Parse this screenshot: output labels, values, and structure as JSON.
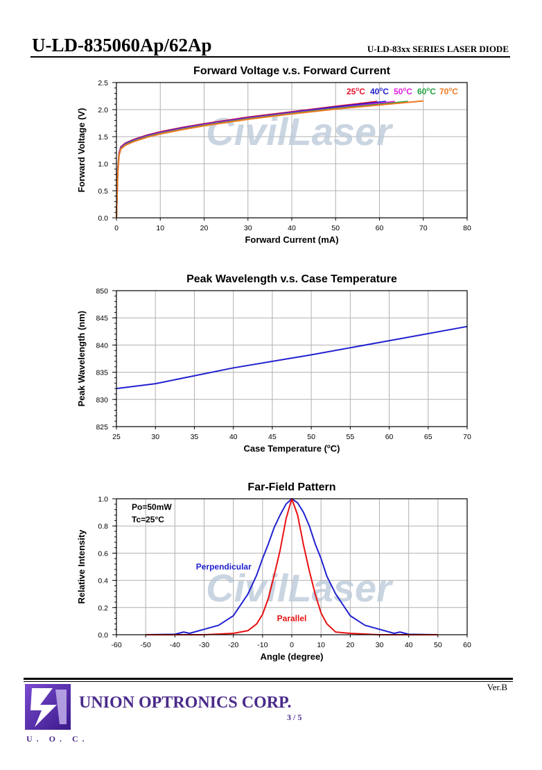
{
  "header": {
    "model": "U-LD-835060Ap/62Ap",
    "series": "U-LD-83xx SERIES LASER DIODE"
  },
  "watermark": "CivilLaser",
  "footer": {
    "version": "Ver.B",
    "company": "UNION OPTRONICS CORP.",
    "page": "3 / 5",
    "logo_text": "U. O. C."
  },
  "chart_data": [
    {
      "type": "line",
      "title": "Forward Voltage v.s. Forward Current",
      "xlabel": "Forward Current (mA)",
      "ylabel": "Forward Voltage (V)",
      "xlim": [
        0,
        80
      ],
      "ylim": [
        0,
        2.5
      ],
      "xticks": [
        0,
        10,
        20,
        30,
        40,
        50,
        60,
        70,
        80
      ],
      "yticks": [
        0.0,
        0.5,
        1.0,
        1.5,
        2.0,
        2.5
      ],
      "ytick_labels": [
        "0.0",
        "0.5",
        "1.0",
        "1.5",
        "2.0",
        "2.5"
      ],
      "grid": true,
      "series": [
        {
          "name": "25°C",
          "color": "#e8102c",
          "x": [
            0,
            0.3,
            0.6,
            1,
            2,
            4,
            7,
            10,
            15,
            20,
            30,
            40,
            50,
            59.5
          ],
          "y": [
            0,
            0.9,
            1.2,
            1.31,
            1.38,
            1.45,
            1.53,
            1.59,
            1.67,
            1.74,
            1.86,
            1.96,
            2.06,
            2.15
          ]
        },
        {
          "name": "40°C",
          "color": "#2020d0",
          "x": [
            0,
            0.3,
            0.6,
            1,
            2,
            4,
            7,
            10,
            15,
            20,
            30,
            40,
            50,
            61.5
          ],
          "y": [
            0,
            0.88,
            1.18,
            1.3,
            1.37,
            1.44,
            1.52,
            1.58,
            1.66,
            1.73,
            1.85,
            1.95,
            2.05,
            2.15
          ]
        },
        {
          "name": "50°C",
          "color": "#e020e0",
          "x": [
            0,
            0.3,
            0.6,
            1,
            2,
            4,
            7,
            10,
            15,
            20,
            30,
            40,
            50,
            63.5
          ],
          "y": [
            0,
            0.86,
            1.17,
            1.29,
            1.36,
            1.43,
            1.51,
            1.57,
            1.65,
            1.72,
            1.84,
            1.94,
            2.03,
            2.15
          ]
        },
        {
          "name": "60°C",
          "color": "#20a040",
          "x": [
            0,
            0.3,
            0.6,
            1,
            2,
            4,
            7,
            10,
            15,
            20,
            30,
            40,
            50,
            66.5
          ],
          "y": [
            0,
            0.85,
            1.16,
            1.28,
            1.35,
            1.42,
            1.5,
            1.56,
            1.64,
            1.71,
            1.83,
            1.93,
            2.02,
            2.15
          ]
        },
        {
          "name": "70°C",
          "color": "#f07820",
          "x": [
            0,
            0.3,
            0.6,
            1,
            2,
            4,
            7,
            10,
            15,
            20,
            30,
            40,
            50,
            70
          ],
          "y": [
            0,
            0.83,
            1.15,
            1.27,
            1.34,
            1.41,
            1.49,
            1.55,
            1.63,
            1.7,
            1.82,
            1.92,
            2.01,
            2.16
          ]
        }
      ]
    },
    {
      "type": "line",
      "title": "Peak Wavelength v.s. Case Temperature",
      "xlabel": "Case Temperature (°C)",
      "ylabel": "Peak Wavelength (nm)",
      "xlim": [
        25,
        70
      ],
      "ylim": [
        825,
        850
      ],
      "xticks": [
        25,
        30,
        35,
        40,
        45,
        50,
        55,
        60,
        65,
        70
      ],
      "yticks": [
        825,
        830,
        835,
        840,
        845,
        850
      ],
      "ytick_labels": [
        "825",
        "830",
        "835",
        "840",
        "845",
        "850"
      ],
      "grid": true,
      "series": [
        {
          "name": "Peak Wavelength",
          "color": "#2020d0",
          "x": [
            25,
            30,
            40,
            50,
            60,
            70
          ],
          "y": [
            832.0,
            832.9,
            835.8,
            838.2,
            840.8,
            843.4
          ]
        }
      ]
    },
    {
      "type": "line",
      "title": "Far-Field Pattern",
      "xlabel": "Angle (degree)",
      "ylabel": "Relative Intensity",
      "xlim": [
        -60,
        60
      ],
      "ylim": [
        0,
        1.0
      ],
      "xticks": [
        -60,
        -50,
        -40,
        -30,
        -20,
        -10,
        0,
        10,
        20,
        30,
        40,
        50,
        60
      ],
      "yticks": [
        0.0,
        0.2,
        0.4,
        0.6,
        0.8,
        1.0
      ],
      "ytick_labels": [
        "0.0",
        "0.2",
        "0.4",
        "0.6",
        "0.8",
        "1.0"
      ],
      "grid": true,
      "conditions": [
        "Po=50mW",
        "Tc=25°C"
      ],
      "series": [
        {
          "name": "Perpendicular",
          "color": "#2020d0",
          "x": [
            -50,
            -40,
            -37,
            -35,
            -30,
            -25,
            -20,
            -15,
            -12,
            -10,
            -8,
            -6,
            -4,
            -2,
            0,
            2,
            4,
            6,
            8,
            10,
            12,
            15,
            20,
            25,
            30,
            35,
            37,
            40,
            50
          ],
          "y": [
            0.0,
            0.003,
            0.02,
            0.01,
            0.04,
            0.07,
            0.14,
            0.3,
            0.44,
            0.56,
            0.67,
            0.79,
            0.88,
            0.96,
            1.0,
            0.97,
            0.9,
            0.8,
            0.67,
            0.56,
            0.43,
            0.3,
            0.14,
            0.07,
            0.04,
            0.01,
            0.02,
            0.003,
            0.0
          ]
        },
        {
          "name": "Parallel",
          "color": "#e81010",
          "x": [
            -50,
            -30,
            -20,
            -15,
            -12,
            -10,
            -8,
            -6,
            -4,
            -2,
            0,
            2,
            4,
            6,
            8,
            10,
            12,
            15,
            20,
            30,
            50
          ],
          "y": [
            0.0,
            0.0,
            0.01,
            0.03,
            0.08,
            0.15,
            0.27,
            0.44,
            0.62,
            0.85,
            1.0,
            0.88,
            0.66,
            0.47,
            0.3,
            0.16,
            0.08,
            0.02,
            0.01,
            0.0,
            0.0
          ]
        }
      ]
    }
  ]
}
